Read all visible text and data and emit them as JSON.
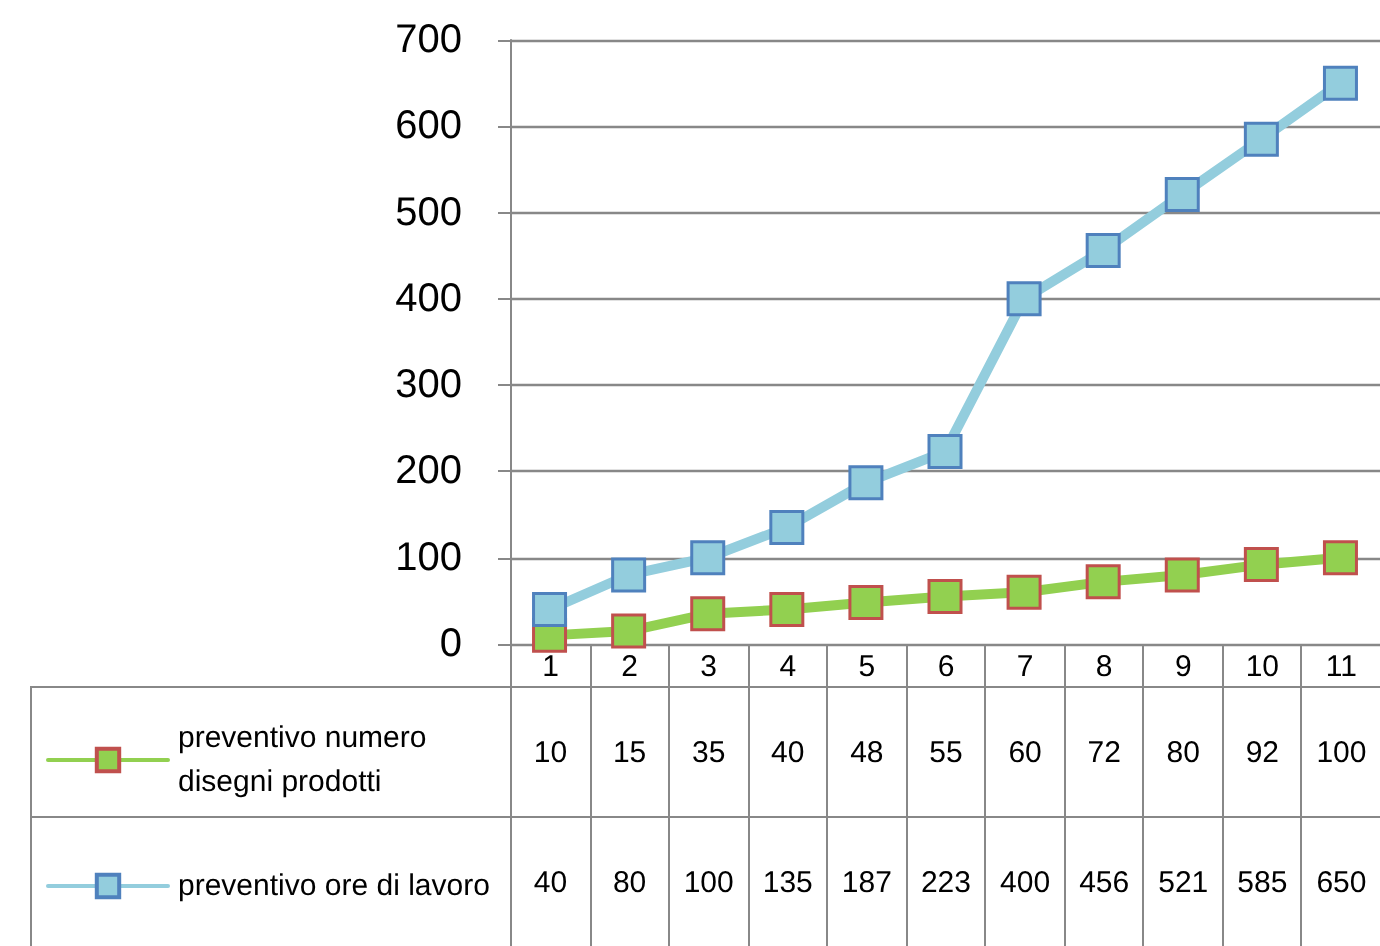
{
  "chart_data": {
    "type": "line",
    "categories": [
      "1",
      "2",
      "3",
      "4",
      "5",
      "6",
      "7",
      "8",
      "9",
      "10",
      "11"
    ],
    "series": [
      {
        "name": "preventivo numero disegni prodotti",
        "color": "#92d050",
        "values": [
          10,
          15,
          35,
          40,
          48,
          55,
          60,
          72,
          80,
          92,
          100
        ]
      },
      {
        "name": "preventivo ore di lavoro",
        "color": "#93cddd",
        "values": [
          40,
          80,
          100,
          135,
          187,
          223,
          400,
          456,
          521,
          585,
          650
        ]
      }
    ],
    "ylim": [
      0,
      700
    ],
    "yticks": [
      0,
      100,
      200,
      300,
      400,
      500,
      600,
      700
    ],
    "grid": "y",
    "legend": "bottom left",
    "marker": "square",
    "line_style": "solid",
    "data_labels": true
  }
}
